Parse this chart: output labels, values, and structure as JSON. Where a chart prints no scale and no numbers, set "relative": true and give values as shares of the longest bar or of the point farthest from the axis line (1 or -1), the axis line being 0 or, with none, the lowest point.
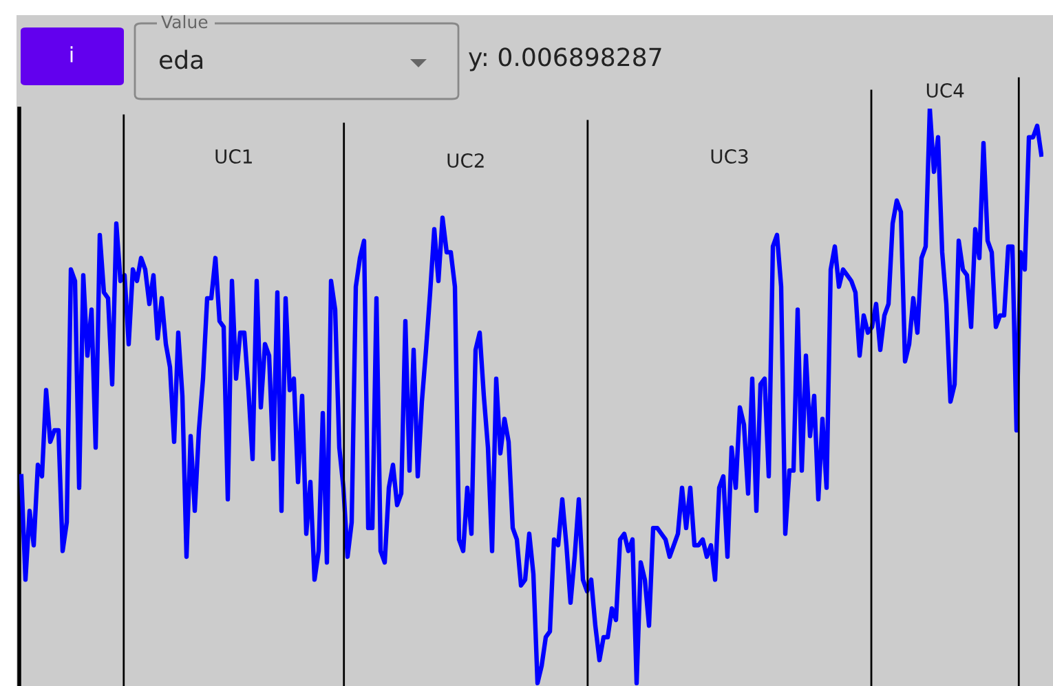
{
  "chart_data": {
    "type": "line",
    "relative": true,
    "categories": [
      null,
      null,
      null,
      null,
      null,
      null,
      null,
      null,
      null,
      null,
      null,
      null,
      null,
      null,
      null,
      null,
      null,
      null,
      null,
      null,
      null,
      null,
      null,
      null,
      null,
      null,
      null,
      null,
      null,
      null,
      null,
      null,
      null,
      null,
      null,
      null,
      null,
      null,
      null,
      null,
      null,
      null,
      null,
      null,
      null,
      null,
      null,
      null,
      null,
      null,
      null,
      null,
      null,
      null,
      null,
      null,
      null,
      null,
      null,
      null,
      null,
      null,
      null,
      null,
      null,
      null,
      null,
      null,
      null,
      null,
      null,
      null,
      null,
      null,
      null,
      null,
      null,
      null,
      null,
      null,
      null,
      null,
      null,
      null,
      null,
      null,
      null,
      null,
      null,
      null,
      null,
      null,
      null,
      null,
      null,
      null,
      null,
      null,
      null,
      null,
      null,
      null,
      null,
      null,
      null,
      null,
      null,
      null,
      null,
      null,
      null,
      null,
      null,
      null,
      null,
      null,
      null,
      null,
      null,
      null,
      null,
      null,
      null,
      null,
      null,
      null,
      null,
      null,
      null,
      null,
      null,
      null,
      null,
      null,
      null,
      null,
      null,
      null,
      null,
      null,
      null,
      null,
      null,
      null,
      null,
      null,
      null,
      null,
      null,
      null,
      null,
      null,
      null,
      null,
      null,
      null,
      null,
      null,
      null,
      null,
      null,
      null,
      null,
      null,
      null,
      null,
      null,
      null,
      null,
      null,
      null,
      null,
      null,
      null,
      null,
      null,
      null,
      null,
      null,
      null,
      null,
      null,
      null,
      null,
      null,
      null,
      null,
      null,
      null,
      null,
      null,
      null,
      null,
      null,
      null,
      null,
      null,
      null,
      null,
      null,
      null,
      null,
      null,
      null,
      null,
      null,
      null,
      null,
      null,
      null,
      null,
      null,
      null,
      null,
      null,
      null,
      null,
      null,
      null,
      null,
      null,
      null,
      null,
      null,
      null,
      null,
      null,
      null,
      null,
      null,
      null,
      null,
      null,
      null,
      null,
      null,
      null,
      null,
      null,
      null,
      null,
      null,
      null,
      null,
      null,
      null,
      null,
      null
    ],
    "series": [
      {
        "color": "#0000ff",
        "values": [
          0.36,
          0.18,
          0.3,
          0.24,
          0.38,
          0.36,
          0.51,
          0.42,
          0.44,
          0.44,
          0.23,
          0.28,
          0.72,
          0.7,
          0.34,
          0.71,
          0.57,
          0.65,
          0.41,
          0.78,
          0.68,
          0.67,
          0.52,
          0.8,
          0.7,
          0.71,
          0.59,
          0.72,
          0.7,
          0.74,
          0.72,
          0.66,
          0.71,
          0.6,
          0.67,
          0.59,
          0.55,
          0.42,
          0.61,
          0.5,
          0.22,
          0.43,
          0.3,
          0.44,
          0.53,
          0.67,
          0.67,
          0.74,
          0.63,
          0.62,
          0.32,
          0.7,
          0.53,
          0.61,
          0.61,
          0.51,
          0.39,
          0.7,
          0.48,
          0.59,
          0.57,
          0.39,
          0.68,
          0.3,
          0.67,
          0.51,
          0.53,
          0.35,
          0.5,
          0.26,
          0.35,
          0.18,
          0.23,
          0.47,
          0.21,
          0.7,
          0.65,
          0.41,
          0.34,
          0.22,
          0.28,
          0.69,
          0.74,
          0.77,
          0.27,
          0.27,
          0.67,
          0.23,
          0.21,
          0.34,
          0.38,
          0.31,
          0.33,
          0.63,
          0.37,
          0.58,
          0.36,
          0.49,
          0.58,
          0.68,
          0.79,
          0.7,
          0.81,
          0.75,
          0.75,
          0.69,
          0.25,
          0.23,
          0.34,
          0.26,
          0.58,
          0.61,
          0.5,
          0.41,
          0.23,
          0.53,
          0.4,
          0.46,
          0.42,
          0.27,
          0.25,
          0.17,
          0.18,
          0.26,
          0.19,
          0.0,
          0.03,
          0.08,
          0.09,
          0.25,
          0.24,
          0.32,
          0.24,
          0.14,
          0.22,
          0.32,
          0.18,
          0.16,
          0.18,
          0.1,
          0.04,
          0.08,
          0.08,
          0.13,
          0.11,
          0.25,
          0.26,
          0.23,
          0.25,
          0.0,
          0.21,
          0.18,
          0.1,
          0.27,
          0.27,
          0.26,
          0.25,
          0.22,
          0.24,
          0.26,
          0.34,
          0.27,
          0.34,
          0.24,
          0.24,
          0.25,
          0.22,
          0.24,
          0.18,
          0.34,
          0.36,
          0.22,
          0.41,
          0.34,
          0.48,
          0.45,
          0.33,
          0.53,
          0.3,
          0.52,
          0.53,
          0.36,
          0.76,
          0.78,
          0.69,
          0.26,
          0.37,
          0.37,
          0.65,
          0.37,
          0.57,
          0.43,
          0.5,
          0.32,
          0.46,
          0.34,
          0.72,
          0.76,
          0.69,
          0.72,
          0.71,
          0.7,
          0.68,
          0.57,
          0.64,
          0.61,
          0.62,
          0.66,
          0.58,
          0.64,
          0.66,
          0.8,
          0.84,
          0.82,
          0.56,
          0.59,
          0.67,
          0.61,
          0.74,
          0.76,
          1.0,
          0.89,
          0.95,
          0.75,
          0.66,
          0.49,
          0.52,
          0.77,
          0.72,
          0.71,
          0.62,
          0.79,
          0.74,
          0.94,
          0.77,
          0.75,
          0.62,
          0.64,
          0.64,
          0.76,
          0.76,
          0.44,
          0.75,
          0.72,
          0.95,
          0.95,
          0.97,
          0.92
        ]
      }
    ],
    "annotations": [
      "i",
      "Value",
      "eda",
      "y: 0.006898287",
      "UC1",
      "UC2",
      "UC3",
      "UC4"
    ]
  }
}
